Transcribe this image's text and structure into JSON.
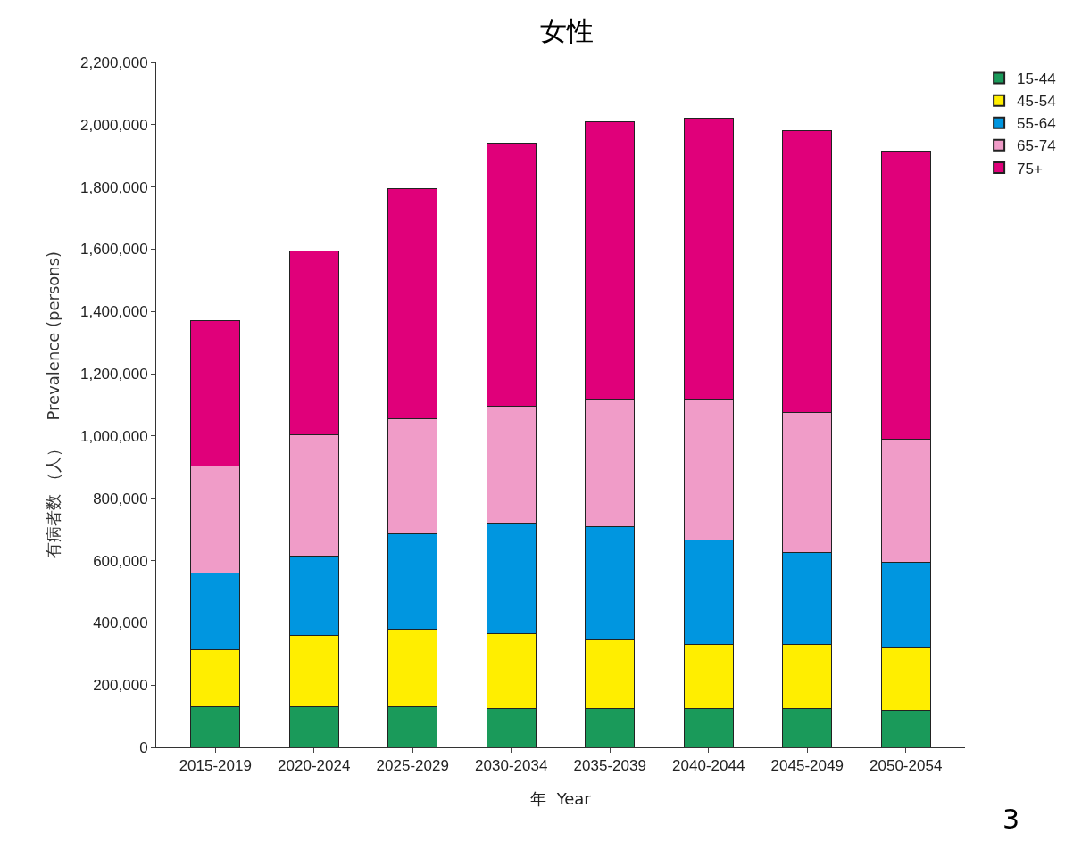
{
  "chart_data": {
    "type": "bar",
    "title": "女性",
    "xlabel": "年  Year",
    "ylabel": "有病者数 （人）    Prevalence (persons)",
    "stacked": true,
    "grid": false,
    "legend": "top right",
    "categories": [
      "2015-2019",
      "2020-2024",
      "2025-2029",
      "2030-2034",
      "2035-2039",
      "2040-2044",
      "2045-2049",
      "2050-2054"
    ],
    "series": [
      {
        "name": "15-44",
        "color": "#1a9a5a",
        "values": [
          130000,
          130000,
          130000,
          125000,
          125000,
          125000,
          125000,
          120000
        ]
      },
      {
        "name": "45-54",
        "color": "#ffee00",
        "values": [
          185000,
          230000,
          250000,
          240000,
          220000,
          205000,
          205000,
          200000
        ]
      },
      {
        "name": "55-64",
        "color": "#0096e0",
        "values": [
          245000,
          255000,
          305000,
          355000,
          365000,
          335000,
          295000,
          275000
        ]
      },
      {
        "name": "65-74",
        "color": "#f09cc8",
        "values": [
          345000,
          390000,
          370000,
          375000,
          410000,
          455000,
          450000,
          395000
        ]
      },
      {
        "name": "75+",
        "color": "#e0007a",
        "values": [
          465000,
          590000,
          740000,
          845000,
          890000,
          900000,
          905000,
          925000
        ]
      }
    ],
    "ylim": [
      0,
      2200000
    ],
    "yticks": [
      0,
      {
        "value": 200000,
        "label": "200,000"
      },
      {
        "value": 400000,
        "label": "400,000"
      },
      {
        "value": 600000,
        "label": "600,000"
      },
      {
        "value": 800000,
        "label": "800,000"
      },
      {
        "value": 1000000,
        "label": "1,000,000"
      },
      {
        "value": 1200000,
        "label": "1,200,000"
      },
      {
        "value": 1400000,
        "label": "1,400,000"
      },
      {
        "value": 1600000,
        "label": "1,600,000"
      },
      {
        "value": 1800000,
        "label": "1,800,000"
      },
      {
        "value": 2000000,
        "label": "2,000,000"
      },
      {
        "value": 2200000,
        "label": "2,200,000"
      }
    ],
    "annotations": [
      "3"
    ]
  }
}
